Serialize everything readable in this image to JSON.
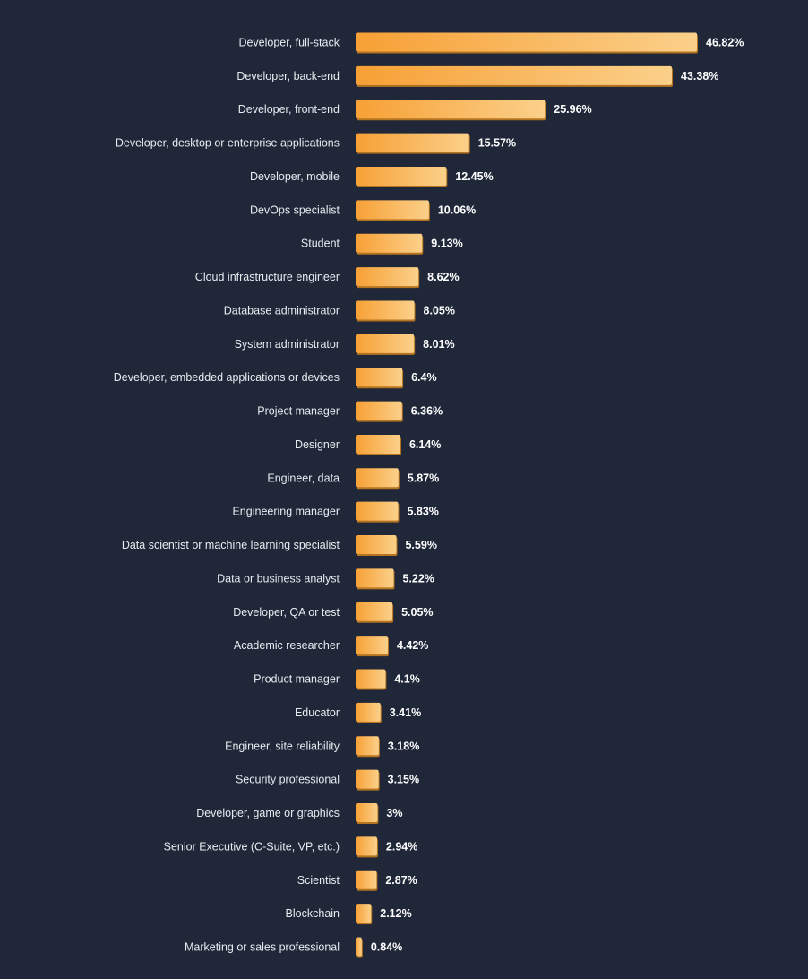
{
  "colors": {
    "background": "#1f2739",
    "bar_start": "#f7a035",
    "bar_end": "#fbd08a",
    "bar_shadow": "#b57420",
    "label_text": "#e8ebf0",
    "value_text": "#ffffff"
  },
  "chart_data": {
    "type": "bar",
    "orientation": "horizontal",
    "title": "",
    "xlabel": "",
    "ylabel": "",
    "xlim": [
      0,
      50
    ],
    "grid": false,
    "legend": "none",
    "value_suffix": "%",
    "categories": [
      "Developer, full-stack",
      "Developer, back-end",
      "Developer, front-end",
      "Developer, desktop or enterprise applications",
      "Developer, mobile",
      "DevOps specialist",
      "Student",
      "Cloud infrastructure engineer",
      "Database administrator",
      "System administrator",
      "Developer, embedded applications or devices",
      "Project manager",
      "Designer",
      "Engineer, data",
      "Engineering manager",
      "Data scientist or machine learning specialist",
      "Data or business analyst",
      "Developer, QA or test",
      "Academic researcher",
      "Product manager",
      "Educator",
      "Engineer, site reliability",
      "Security professional",
      "Developer, game or graphics",
      "Senior Executive (C-Suite, VP, etc.)",
      "Scientist",
      "Blockchain",
      "Marketing or sales professional"
    ],
    "values": [
      46.82,
      43.38,
      25.96,
      15.57,
      12.45,
      10.06,
      9.13,
      8.62,
      8.05,
      8.01,
      6.4,
      6.36,
      6.14,
      5.87,
      5.83,
      5.59,
      5.22,
      5.05,
      4.42,
      4.1,
      3.41,
      3.18,
      3.15,
      3,
      2.94,
      2.87,
      2.12,
      0.84
    ],
    "value_labels": [
      "46.82%",
      "43.38%",
      "25.96%",
      "15.57%",
      "12.45%",
      "10.06%",
      "9.13%",
      "8.62%",
      "8.05%",
      "8.01%",
      "6.4%",
      "6.36%",
      "6.14%",
      "5.87%",
      "5.83%",
      "5.59%",
      "5.22%",
      "5.05%",
      "4.42%",
      "4.1%",
      "3.41%",
      "3.18%",
      "3.15%",
      "3%",
      "2.94%",
      "2.87%",
      "2.12%",
      "0.84%"
    ]
  }
}
